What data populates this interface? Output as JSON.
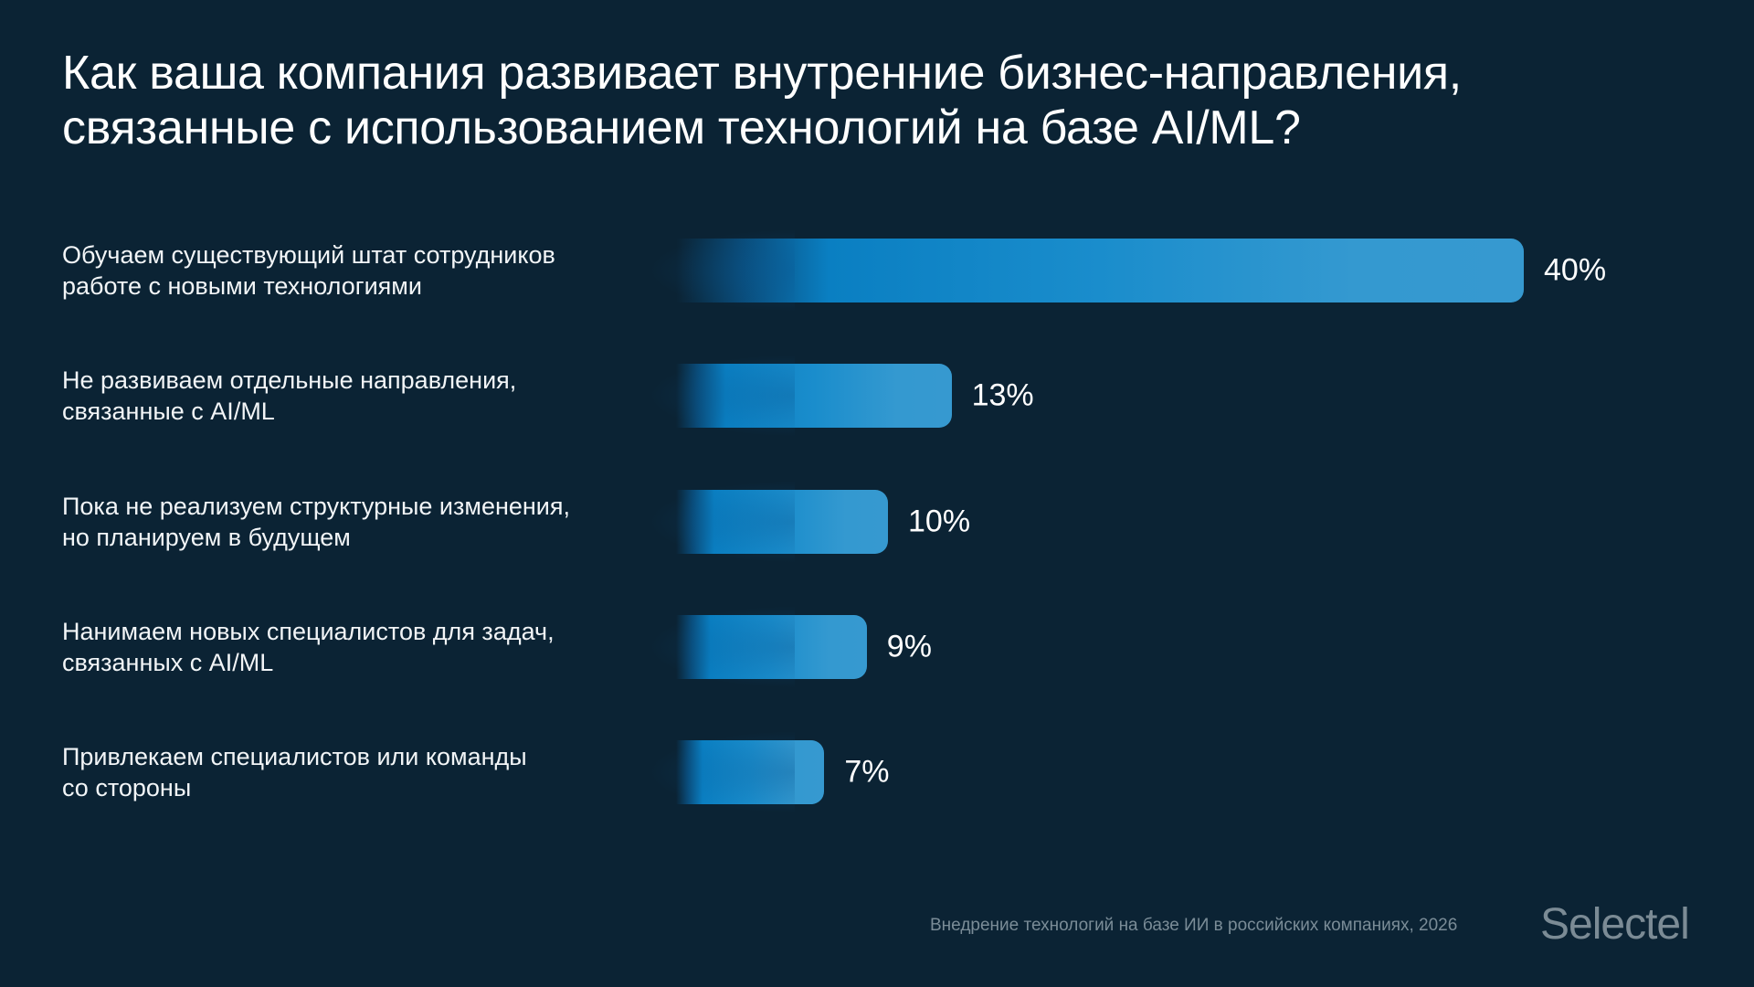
{
  "chart_data": {
    "type": "bar",
    "orientation": "horizontal",
    "title": "Как ваша компания развивает внутренние бизнес-направления, связанные с использованием технологий на базе AI/ML?",
    "categories": [
      "Обучаем существующий штат сотрудников работе с новыми технологиями",
      "Не развиваем отдельные направления, связанные с AI/ML",
      "Пока не реализуем структурные изменения, но планируем в будущем",
      "Нанимаем новых специалистов для задач, связанных с AI/ML",
      "Привлекаем специалистов или команды со стороны"
    ],
    "label_lines": [
      [
        "Обучаем существующий штат сотрудников",
        "работе с новыми технологиями"
      ],
      [
        "Не развиваем отдельные направления,",
        "связанные с AI/ML"
      ],
      [
        "Пока не реализуем структурные изменения,",
        "но планируем в будущем"
      ],
      [
        "Нанимаем новых специалистов для задач,",
        "связанных с AI/ML"
      ],
      [
        "Привлекаем специалистов или команды",
        "со стороны"
      ]
    ],
    "values": [
      40,
      13,
      10,
      9,
      7
    ],
    "value_labels": [
      "40%",
      "13%",
      "10%",
      "9%",
      "7%"
    ],
    "unit": "%",
    "grid": false,
    "bar_color": "#1a8dcc"
  },
  "footer": {
    "source": "Внедрение технологий на базе ИИ в российских компаниях, 2026",
    "logo": "Selectel"
  }
}
